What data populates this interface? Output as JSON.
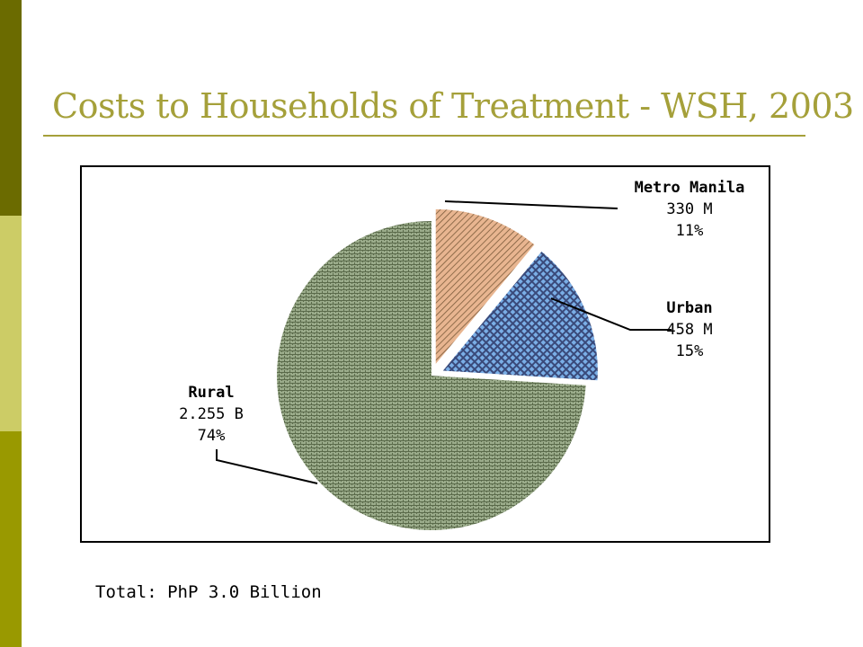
{
  "slide": {
    "title": "Costs to Households of Treatment - WSH, 2003",
    "footer": "Total: PhP 3.0 Billion"
  },
  "colors": {
    "sidebar_dark": "#6b6b00",
    "sidebar_light": "#cccc66",
    "sidebar_mid": "#999900",
    "title": "#a5a03a",
    "metro_fill": "#e8b590",
    "metro_hatch": "#7a5a3a",
    "urban_fill": "#7aaee6",
    "urban_pattern": "#3a4a7a",
    "rural_fill": "#9aab8a",
    "rural_pattern": "#5a6a4a"
  },
  "chart_data": {
    "type": "pie",
    "title": "",
    "slices": [
      {
        "label": "Metro Manila",
        "value_text": "330 M",
        "percent_text": "11%",
        "percent": 11,
        "exploded": true
      },
      {
        "label": "Urban",
        "value_text": "458 M",
        "percent_text": "15%",
        "percent": 15,
        "exploded": true
      },
      {
        "label": "Rural",
        "value_text": "2.255 B",
        "percent_text": "74%",
        "percent": 74,
        "exploded": false
      }
    ]
  }
}
